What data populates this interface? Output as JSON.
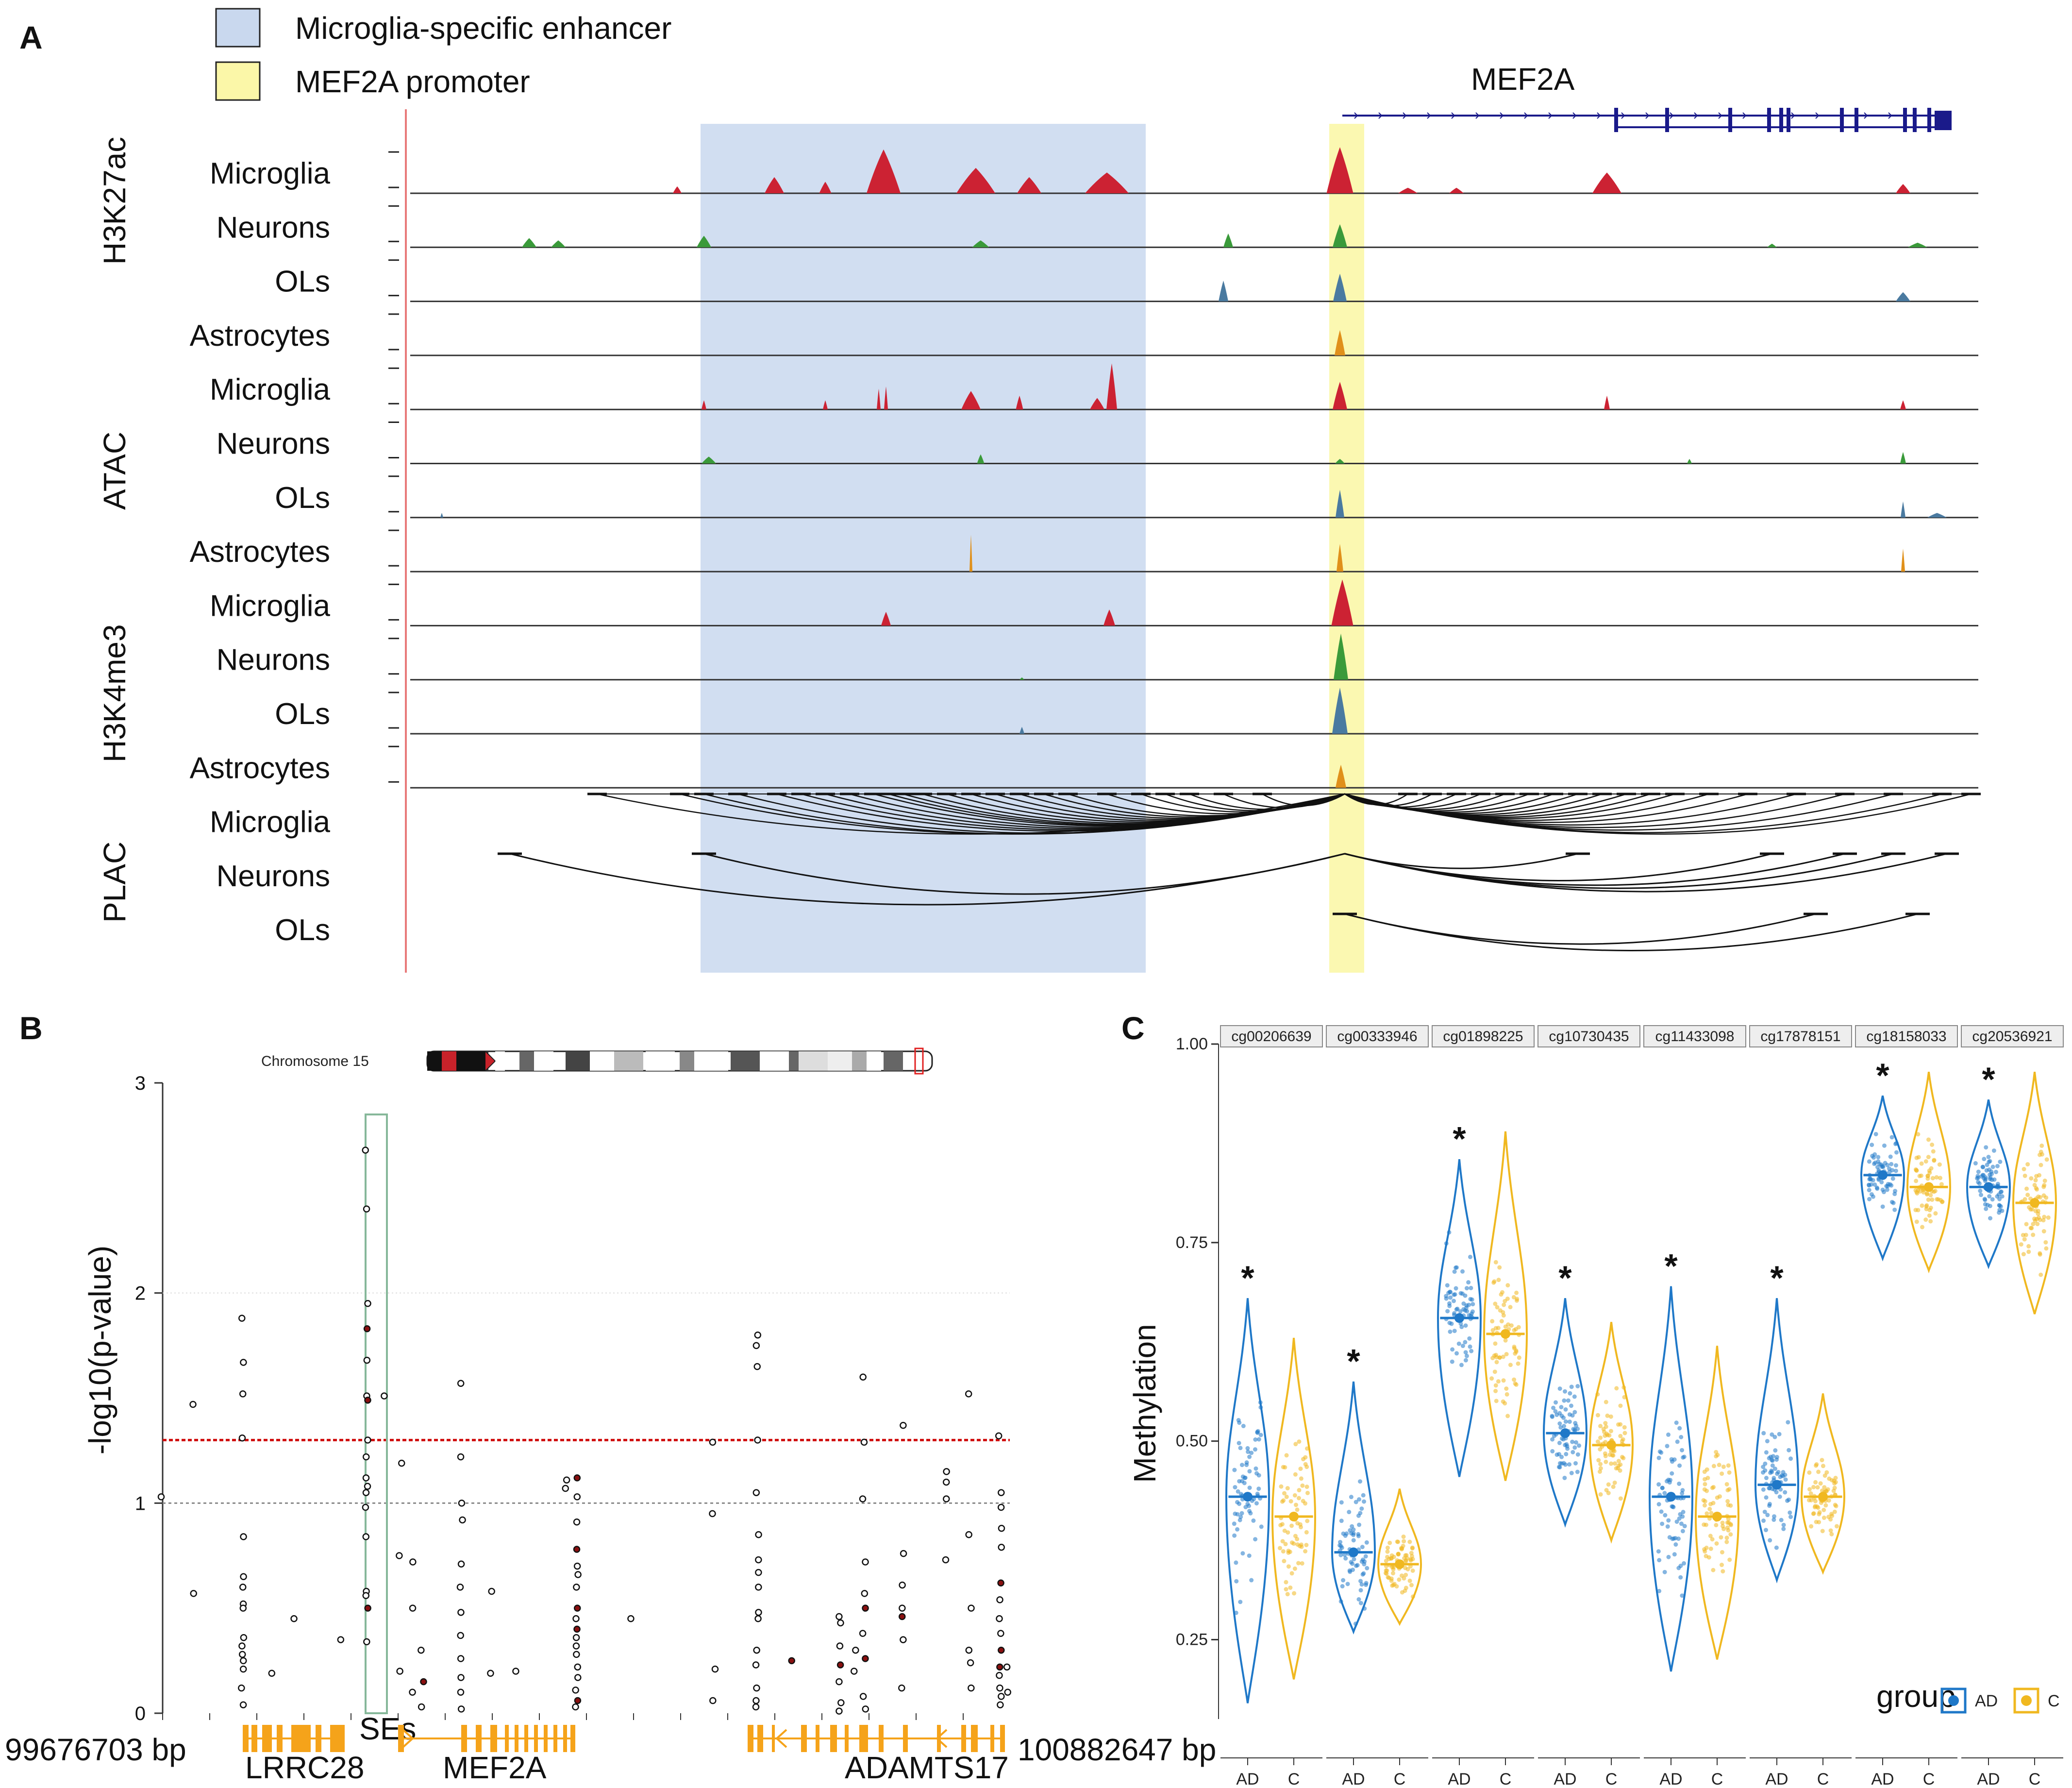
{
  "figure": {
    "panel_a_label": "A",
    "panel_b_label": "B",
    "panel_c_label": "C"
  },
  "panel_a": {
    "legend": [
      {
        "label": "Microglia-specific enhancer",
        "color": "#c9d8ee"
      },
      {
        "label": "MEF2A promoter",
        "color": "#fbf7a8"
      }
    ],
    "gene_label": "MEF2A",
    "assays": [
      "H3K27ac",
      "ATAC",
      "H3K4me3",
      "PLAC"
    ],
    "rows": [
      {
        "assay": "H3K27ac",
        "cell": "Microglia",
        "color": "#cc2233"
      },
      {
        "assay": "H3K27ac",
        "cell": "Neurons",
        "color": "#3a9a3a"
      },
      {
        "assay": "H3K27ac",
        "cell": "OLs",
        "color": "#4a7aa0"
      },
      {
        "assay": "H3K27ac",
        "cell": "Astrocytes",
        "color": "#e0901a"
      },
      {
        "assay": "ATAC",
        "cell": "Microglia",
        "color": "#cc2233"
      },
      {
        "assay": "ATAC",
        "cell": "Neurons",
        "color": "#3a9a3a"
      },
      {
        "assay": "ATAC",
        "cell": "OLs",
        "color": "#4a7aa0"
      },
      {
        "assay": "ATAC",
        "cell": "Astrocytes",
        "color": "#e0901a"
      },
      {
        "assay": "H3K4me3",
        "cell": "Microglia",
        "color": "#cc2233"
      },
      {
        "assay": "H3K4me3",
        "cell": "Neurons",
        "color": "#3a9a3a"
      },
      {
        "assay": "H3K4me3",
        "cell": "OLs",
        "color": "#4a7aa0"
      },
      {
        "assay": "H3K4me3",
        "cell": "Astrocytes",
        "color": "#e0901a"
      },
      {
        "assay": "PLAC",
        "cell": "Microglia",
        "color": "#000000"
      },
      {
        "assay": "PLAC",
        "cell": "Neurons",
        "color": "#000000"
      },
      {
        "assay": "PLAC",
        "cell": "OLs",
        "color": "#000000"
      }
    ]
  },
  "panel_b": {
    "chromosome_label": "Chromosome 15",
    "ylabel": "-log10(p-value)",
    "yticks": [
      "0",
      "1",
      "2",
      "3"
    ],
    "ylim": [
      0,
      3
    ],
    "significance_line": 1.3,
    "suggestive_line": 1.0,
    "genes": [
      "LRRC28",
      "MEF2A",
      "ADAMTS17"
    ],
    "se_label": "SEs",
    "start_bp": "99676703 bp",
    "end_bp": "100882647 bp"
  },
  "chart_data": {
    "type": "violin",
    "title": "",
    "xlabel": "",
    "ylabel": "Methylation",
    "ylim": [
      0.15,
      1.0
    ],
    "yticks": [
      "0.25",
      "0.50",
      "0.75",
      "1.00"
    ],
    "groups": [
      "AD",
      "C"
    ],
    "legend_title": "group",
    "colors": {
      "AD": "#1f78c8",
      "C": "#f0b820"
    },
    "significance_marker": "*",
    "facets": [
      {
        "probe": "cg00206639",
        "significant": true,
        "AD": {
          "median": 0.43,
          "min": 0.17,
          "max": 0.68
        },
        "C": {
          "median": 0.405,
          "min": 0.2,
          "max": 0.63
        }
      },
      {
        "probe": "cg00333946",
        "significant": true,
        "AD": {
          "median": 0.36,
          "min": 0.26,
          "max": 0.575
        },
        "C": {
          "median": 0.345,
          "min": 0.27,
          "max": 0.44
        }
      },
      {
        "probe": "cg01898225",
        "significant": true,
        "AD": {
          "median": 0.655,
          "min": 0.455,
          "max": 0.855
        },
        "C": {
          "median": 0.635,
          "min": 0.45,
          "max": 0.89
        }
      },
      {
        "probe": "cg10730435",
        "significant": true,
        "AD": {
          "median": 0.51,
          "min": 0.395,
          "max": 0.68
        },
        "C": {
          "median": 0.495,
          "min": 0.375,
          "max": 0.65
        }
      },
      {
        "probe": "cg11433098",
        "significant": true,
        "AD": {
          "median": 0.43,
          "min": 0.21,
          "max": 0.695
        },
        "C": {
          "median": 0.405,
          "min": 0.225,
          "max": 0.62
        }
      },
      {
        "probe": "cg17878151",
        "significant": true,
        "AD": {
          "median": 0.445,
          "min": 0.325,
          "max": 0.68
        },
        "C": {
          "median": 0.43,
          "min": 0.335,
          "max": 0.56
        }
      },
      {
        "probe": "cg18158033",
        "significant": true,
        "AD": {
          "median": 0.835,
          "min": 0.73,
          "max": 0.935
        },
        "C": {
          "median": 0.82,
          "min": 0.715,
          "max": 0.965
        }
      },
      {
        "probe": "cg20536921",
        "significant": true,
        "AD": {
          "median": 0.82,
          "min": 0.72,
          "max": 0.93
        },
        "C": {
          "median": 0.8,
          "min": 0.66,
          "max": 0.965
        }
      }
    ]
  }
}
